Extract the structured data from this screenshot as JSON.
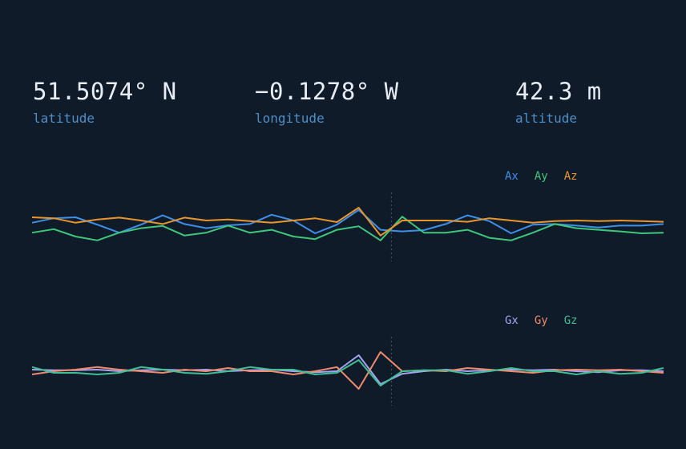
{
  "telemetry": {
    "latitude": {
      "value": "51.5074° N",
      "label": "latitude"
    },
    "longitude": {
      "value": "−0.1278° W",
      "label": "longitude"
    },
    "altitude": {
      "value": "42.3 m",
      "label": "altitude"
    }
  },
  "colors": {
    "background": "#101b2a",
    "value_text": "#e6edf5",
    "label_text": "#4f8fc7",
    "marker": "#4a5668"
  },
  "chart_data": [
    {
      "type": "line",
      "x": [
        0,
        1,
        2,
        3,
        4,
        5,
        6,
        7,
        8,
        9,
        10,
        11,
        12,
        13,
        14,
        15,
        16,
        17,
        18,
        19,
        20,
        21,
        22,
        23,
        24,
        25,
        26,
        27,
        28,
        29
      ],
      "ylim": [
        -1,
        1
      ],
      "marker_x": 16.5,
      "legend": "top-right",
      "grid": false,
      "series": [
        {
          "name": "Ax",
          "color": "#3f8fe8",
          "values": [
            0.13,
            0.27,
            0.3,
            0.07,
            -0.18,
            0.07,
            0.36,
            0.09,
            -0.04,
            0.05,
            0.09,
            0.38,
            0.2,
            -0.2,
            0.07,
            0.53,
            -0.09,
            -0.14,
            -0.1,
            0.09,
            0.36,
            0.18,
            -0.2,
            0.07,
            0.09,
            0.04,
            -0.02,
            0.04,
            0.04,
            0.09
          ]
        },
        {
          "name": "Ay",
          "color": "#3ec77a",
          "values": [
            -0.18,
            -0.07,
            -0.3,
            -0.42,
            -0.18,
            -0.04,
            0.03,
            -0.27,
            -0.18,
            0.04,
            -0.18,
            -0.09,
            -0.3,
            -0.38,
            -0.09,
            0.02,
            -0.42,
            0.32,
            -0.18,
            -0.18,
            -0.09,
            -0.34,
            -0.42,
            -0.18,
            0.09,
            -0.04,
            -0.09,
            -0.14,
            -0.2,
            -0.18
          ]
        },
        {
          "name": "Az",
          "color": "#e8952c",
          "values": [
            0.3,
            0.27,
            0.13,
            0.23,
            0.29,
            0.2,
            0.09,
            0.29,
            0.2,
            0.23,
            0.18,
            0.13,
            0.2,
            0.27,
            0.15,
            0.6,
            -0.27,
            0.2,
            0.2,
            0.2,
            0.16,
            0.27,
            0.2,
            0.13,
            0.18,
            0.2,
            0.18,
            0.2,
            0.18,
            0.16
          ]
        }
      ]
    },
    {
      "type": "line",
      "x": [
        0,
        1,
        2,
        3,
        4,
        5,
        6,
        7,
        8,
        9,
        10,
        11,
        12,
        13,
        14,
        15,
        16,
        17,
        18,
        19,
        20,
        21,
        22,
        23,
        24,
        25,
        26,
        27,
        28,
        29
      ],
      "ylim": [
        -1,
        1
      ],
      "marker_x": 16.5,
      "legend": "top-right",
      "grid": false,
      "series": [
        {
          "name": "Gx",
          "color": "#a7a3f2",
          "values": [
            0.05,
            0.03,
            0.03,
            0.05,
            0.0,
            0.03,
            0.05,
            0.03,
            0.05,
            0.0,
            0.03,
            0.05,
            0.0,
            -0.03,
            0.0,
            0.5,
            -0.4,
            -0.08,
            0.0,
            0.05,
            0.0,
            0.03,
            0.05,
            0.03,
            0.05,
            0.0,
            -0.03,
            0.03,
            0.03,
            0.0
          ]
        },
        {
          "name": "Gy",
          "color": "#f08a6c",
          "values": [
            -0.1,
            0.0,
            0.05,
            0.13,
            0.05,
            0.0,
            -0.05,
            0.05,
            0.0,
            0.1,
            0.0,
            0.0,
            -0.1,
            0.0,
            0.13,
            -0.55,
            0.6,
            0.0,
            0.03,
            0.0,
            0.1,
            0.05,
            0.0,
            -0.05,
            0.03,
            0.05,
            0.03,
            0.05,
            0.0,
            -0.05
          ]
        },
        {
          "name": "Gz",
          "color": "#3fbf94",
          "values": [
            0.13,
            -0.05,
            -0.05,
            -0.1,
            -0.05,
            0.13,
            0.05,
            -0.05,
            -0.08,
            0.0,
            0.13,
            0.05,
            0.05,
            -0.1,
            -0.05,
            0.35,
            -0.45,
            0.0,
            0.03,
            0.03,
            -0.08,
            0.0,
            0.1,
            0.0,
            0.0,
            -0.1,
            0.0,
            -0.08,
            -0.05,
            0.1
          ]
        }
      ]
    }
  ]
}
